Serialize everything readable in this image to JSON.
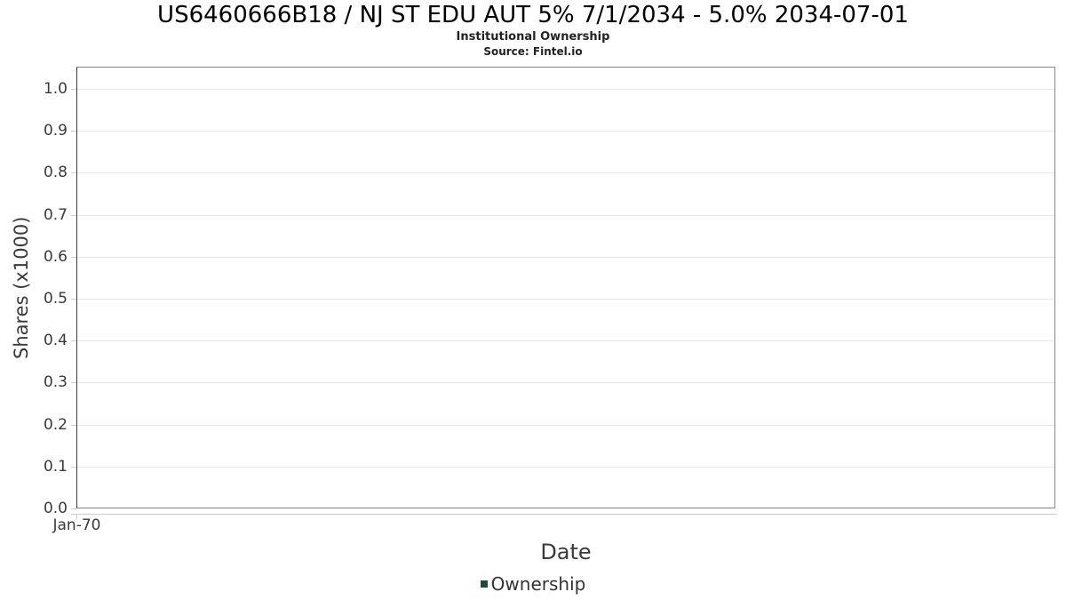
{
  "chart_data": {
    "type": "bar",
    "title": "US6460666B18 / NJ ST EDU AUT 5% 7/1/2034 - 5.0% 2034-07-01",
    "subtitle": "Institutional Ownership",
    "source": "Source: Fintel.io",
    "xlabel": "Date",
    "ylabel": "Shares (x1000)",
    "x_tick_labels": [
      "Jan-70"
    ],
    "y_tick_labels": [
      "0.0",
      "0.1",
      "0.2",
      "0.3",
      "0.4",
      "0.5",
      "0.6",
      "0.7",
      "0.8",
      "0.9",
      "1.0"
    ],
    "ylim": [
      0.0,
      1.053
    ],
    "grid": true,
    "legend_position": "bottom",
    "series": [
      {
        "name": "Ownership",
        "color": "#1d4d2e",
        "x": [],
        "values": []
      }
    ]
  },
  "colors": {
    "grid_line": "#e6e6e6",
    "plot_border": "#878787",
    "y_axis_line": "#3c3c3c",
    "x_axis_line": "#cccccc",
    "tick_mark": "#cccccc",
    "axis_text": "#3a3a3a",
    "title_text": "#000000",
    "legend_marker": "#1d4d2e"
  },
  "legend": {
    "items": [
      {
        "label": "Ownership",
        "color": "#1d4d2e"
      }
    ]
  }
}
